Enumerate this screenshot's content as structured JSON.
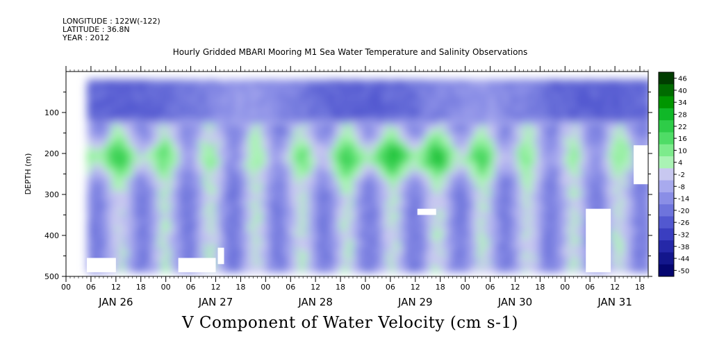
{
  "header": {
    "longitude": "LONGITUDE : 122W(-122)",
    "latitude": "LATITUDE : 36.8N",
    "year": "YEAR : 2012"
  },
  "chart_data": {
    "type": "heatmap",
    "title": "Hourly Gridded MBARI Mooring M1 Sea Water Temperature and Salinity Observations",
    "variable": "V Component of Water Velocity (cm s-1)",
    "ylabel": "DEPTH (m)",
    "y_range": [
      500,
      0
    ],
    "y_ticks": [
      100,
      200,
      300,
      400,
      500
    ],
    "x_start_hour": 0,
    "x_end_hour": 140,
    "x_hour_ticks": [
      "00",
      "06",
      "12",
      "18",
      "00",
      "06",
      "12",
      "18",
      "00",
      "06",
      "12",
      "18",
      "00",
      "06",
      "12",
      "18",
      "00",
      "06",
      "12",
      "18",
      "00",
      "06",
      "12",
      "18"
    ],
    "x_hour_tick_values": [
      0,
      6,
      12,
      18,
      24,
      30,
      36,
      42,
      48,
      54,
      60,
      66,
      72,
      78,
      84,
      90,
      96,
      102,
      108,
      114,
      120,
      126,
      132,
      138
    ],
    "x_day_labels": [
      {
        "label": "JAN 26",
        "hour": 12
      },
      {
        "label": "JAN 27",
        "hour": 36
      },
      {
        "label": "JAN 28",
        "hour": 60
      },
      {
        "label": "JAN 29",
        "hour": 84
      },
      {
        "label": "JAN 30",
        "hour": 108
      },
      {
        "label": "JAN 31",
        "hour": 132
      }
    ],
    "data_start_hour": 5,
    "data_end_hour": 141,
    "data_depth_range": [
      20,
      490
    ],
    "colorbar_levels": [
      46,
      40,
      34,
      28,
      22,
      16,
      10,
      4,
      -2,
      -8,
      -14,
      -20,
      -26,
      -32,
      -38,
      -44,
      -50
    ],
    "colorbar_colors": [
      "#003d00",
      "#006b00",
      "#009600",
      "#10b828",
      "#2ecc48",
      "#4fdc66",
      "#7deb8c",
      "#aaf3b5",
      "#c8c8f0",
      "#a8aaee",
      "#8a8ee6",
      "#6e74dc",
      "#5258d0",
      "#3a3ec0",
      "#2528a8",
      "#13168c",
      "#050670"
    ],
    "dominant_pattern": "westerly depth band 150-250 m green (northward), surface 20-120 m blue (southward), with alternating columns of green and blue extending to depth",
    "missing_regions": [
      {
        "hours": [
          5,
          12
        ],
        "depth": [
          455,
          490
        ]
      },
      {
        "hours": [
          27,
          36
        ],
        "depth": [
          455,
          490
        ]
      },
      {
        "hours": [
          36.5,
          38
        ],
        "depth": [
          430,
          470
        ]
      },
      {
        "hours": [
          84.5,
          89
        ],
        "depth": [
          335,
          350
        ]
      },
      {
        "hours": [
          125,
          131
        ],
        "depth": [
          335,
          490
        ]
      },
      {
        "hours": [
          136.5,
          141
        ],
        "depth": [
          180,
          275
        ]
      }
    ]
  }
}
